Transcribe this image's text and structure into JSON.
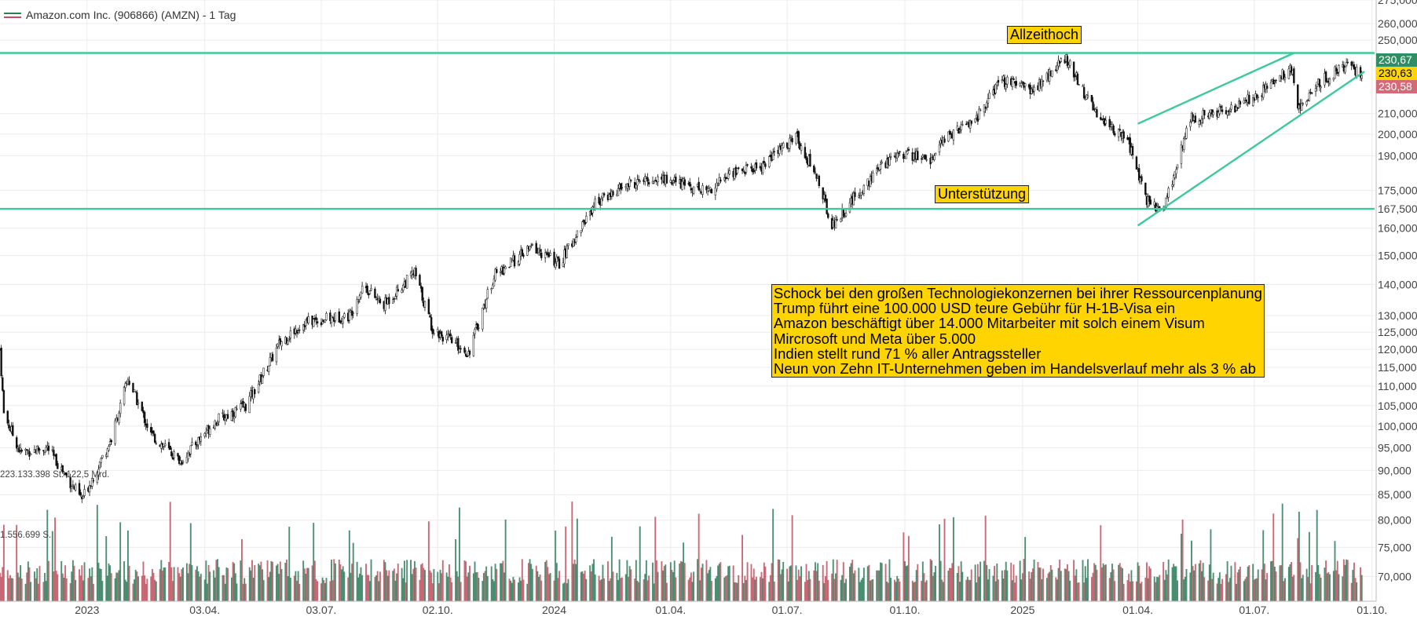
{
  "legend": {
    "label": "Amazon.com Inc. (906866) (AMZN) - 1 Tag"
  },
  "annotations": {
    "ath": "Allzeithoch",
    "support": "Unterstützung",
    "news": [
      "Schock bei den großen Technologiekonzernen bei ihrer Ressourcenplanung",
      "Trump führt eine 100.000 USD teure Gebühr für H-1B-Visa ein",
      "Amazon beschäftigt über 14.000 Mitarbeiter mit solch einem Visum",
      "Mircrosoft und Meta über 5.000",
      "Indien stellt rund 71 % aller Antragssteller",
      "Neun von Zehn IT-Unternehmen geben im Handelsverlauf mehr als 3 % ab"
    ]
  },
  "price_tags": {
    "high": "230,67",
    "last": "230,63",
    "low": "230,58"
  },
  "side_notes": {
    "volume_high": "223.133.398 St. 122,5 Mrd.",
    "volume_low": "1.556.699 S."
  },
  "colors": {
    "up": "#2e7d5b",
    "down": "#c0505f",
    "line": "#3dc99a",
    "note_bg": "#ffd400",
    "tag_last": "#ffd400"
  },
  "chart_data": {
    "type": "candlestick",
    "interval": "1 Tag",
    "scale": "log",
    "ylim": [
      66,
      275
    ],
    "yticks": [
      "70,000",
      "75,000",
      "80,000",
      "85,000",
      "90,000",
      "95,000",
      "100,000",
      "105,000",
      "110,000",
      "115,000",
      "120,000",
      "125,000",
      "130,000",
      "140,000",
      "150,000",
      "160,000",
      "167,500",
      "175,000",
      "190,000",
      "200,000",
      "210,000",
      "250,000",
      "260,000",
      "275,000"
    ],
    "xlim": [
      "2022-10-25",
      "2025-10-03"
    ],
    "xticks": [
      {
        "label": "2023",
        "date": "2023-01-01"
      },
      {
        "label": "03.04.",
        "date": "2023-04-03"
      },
      {
        "label": "03.07.",
        "date": "2023-07-03"
      },
      {
        "label": "02.10.",
        "date": "2023-10-02"
      },
      {
        "label": "2024",
        "date": "2024-01-01"
      },
      {
        "label": "01.04.",
        "date": "2024-04-01"
      },
      {
        "label": "01.07.",
        "date": "2024-07-01"
      },
      {
        "label": "01.10.",
        "date": "2024-10-01"
      },
      {
        "label": "2025",
        "date": "2025-01-01"
      },
      {
        "label": "01.04.",
        "date": "2025-04-01"
      },
      {
        "label": "01.07.",
        "date": "2025-07-01"
      },
      {
        "label": "01.10.",
        "date": "2025-10-01"
      }
    ],
    "approx_close_path": [
      {
        "date": "2022-10-25",
        "close": 120
      },
      {
        "date": "2022-10-28",
        "close": 103
      },
      {
        "date": "2022-11-10",
        "close": 94
      },
      {
        "date": "2022-12-01",
        "close": 95
      },
      {
        "date": "2022-12-28",
        "close": 84
      },
      {
        "date": "2023-01-20",
        "close": 97
      },
      {
        "date": "2023-02-02",
        "close": 112
      },
      {
        "date": "2023-02-20",
        "close": 98
      },
      {
        "date": "2023-03-15",
        "close": 92
      },
      {
        "date": "2023-04-10",
        "close": 101
      },
      {
        "date": "2023-05-05",
        "close": 105
      },
      {
        "date": "2023-06-01",
        "close": 122
      },
      {
        "date": "2023-06-20",
        "close": 128
      },
      {
        "date": "2023-07-25",
        "close": 130
      },
      {
        "date": "2023-08-05",
        "close": 140
      },
      {
        "date": "2023-08-20",
        "close": 133
      },
      {
        "date": "2023-09-14",
        "close": 144
      },
      {
        "date": "2023-09-28",
        "close": 126
      },
      {
        "date": "2023-10-26",
        "close": 119
      },
      {
        "date": "2023-11-15",
        "close": 143
      },
      {
        "date": "2023-12-15",
        "close": 153
      },
      {
        "date": "2024-01-05",
        "close": 147
      },
      {
        "date": "2024-02-02",
        "close": 170
      },
      {
        "date": "2024-03-01",
        "close": 178
      },
      {
        "date": "2024-03-25",
        "close": 180
      },
      {
        "date": "2024-04-30",
        "close": 175
      },
      {
        "date": "2024-05-20",
        "close": 183
      },
      {
        "date": "2024-06-10",
        "close": 185
      },
      {
        "date": "2024-07-08",
        "close": 199
      },
      {
        "date": "2024-07-25",
        "close": 180
      },
      {
        "date": "2024-08-05",
        "close": 161
      },
      {
        "date": "2024-09-01",
        "close": 178
      },
      {
        "date": "2024-09-25",
        "close": 192
      },
      {
        "date": "2024-10-20",
        "close": 188
      },
      {
        "date": "2024-11-05",
        "close": 200
      },
      {
        "date": "2024-11-25",
        "close": 207
      },
      {
        "date": "2024-12-15",
        "close": 227
      },
      {
        "date": "2025-01-10",
        "close": 222
      },
      {
        "date": "2025-02-04",
        "close": 240
      },
      {
        "date": "2025-02-25",
        "close": 212
      },
      {
        "date": "2025-03-25",
        "close": 196
      },
      {
        "date": "2025-04-07",
        "close": 171
      },
      {
        "date": "2025-04-21",
        "close": 167
      },
      {
        "date": "2025-05-12",
        "close": 208
      },
      {
        "date": "2025-06-15",
        "close": 212
      },
      {
        "date": "2025-07-10",
        "close": 223
      },
      {
        "date": "2025-07-30",
        "close": 234
      },
      {
        "date": "2025-08-05",
        "close": 212
      },
      {
        "date": "2025-08-20",
        "close": 226
      },
      {
        "date": "2025-09-10",
        "close": 235
      },
      {
        "date": "2025-09-23",
        "close": 230.6
      }
    ],
    "horizontal_lines": [
      {
        "label": "Allzeithoch",
        "value": 242.5
      },
      {
        "label": "Unterstützung",
        "value": 167.5
      }
    ],
    "trend_channel": {
      "upper": [
        {
          "date": "2025-04-01",
          "value": 205
        },
        {
          "date": "2025-08-01",
          "value": 242.5
        }
      ],
      "lower": [
        {
          "date": "2025-04-01",
          "value": 161
        },
        {
          "date": "2025-09-25",
          "value": 232
        }
      ]
    },
    "last": {
      "high": 230.67,
      "close": 230.63,
      "low": 230.58
    }
  }
}
